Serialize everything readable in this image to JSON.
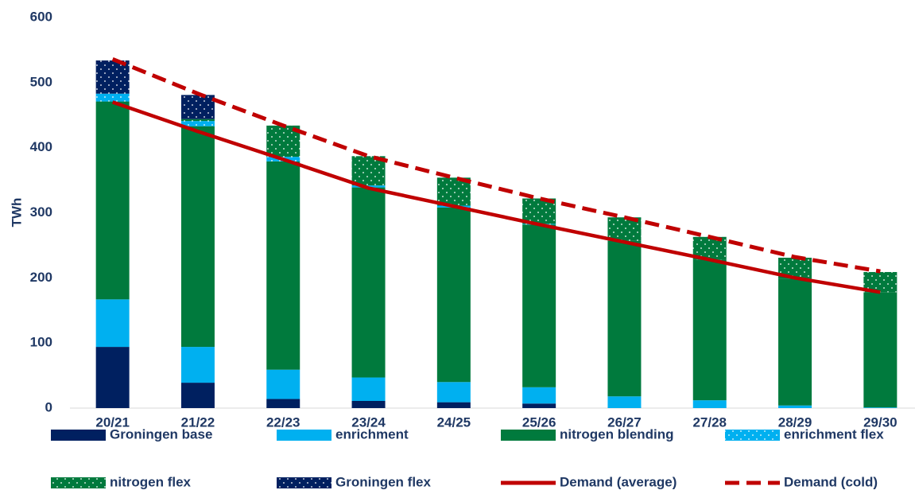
{
  "chart_data": {
    "type": "bar",
    "stacked": true,
    "y_label": "TWh",
    "categories": [
      "20/21",
      "21/22",
      "22/23",
      "23/24",
      "24/25",
      "25/26",
      "26/27",
      "27/28",
      "28/29",
      "29/30"
    ],
    "ylim": [
      0,
      600
    ],
    "yticks": [
      0,
      100,
      200,
      300,
      400,
      500,
      600
    ],
    "grid": false,
    "series": [
      {
        "name": "Groningen base",
        "type": "bar",
        "color": "#002060",
        "values": [
          94,
          39,
          14,
          11,
          9,
          7,
          0,
          0,
          0,
          0
        ]
      },
      {
        "name": "enrichment",
        "type": "bar",
        "color": "#00b0f0",
        "values": [
          73,
          55,
          45,
          36,
          31,
          25,
          18,
          12,
          4,
          1
        ]
      },
      {
        "name": "nitrogen blending",
        "type": "bar",
        "color": "#007a3d",
        "values": [
          304,
          339,
          320,
          292,
          268,
          250,
          239,
          216,
          195,
          177
        ]
      },
      {
        "name": "enrichment flex",
        "type": "bar",
        "color": "#00b0f0",
        "pattern": "dots",
        "values": [
          12,
          8,
          7,
          3,
          3,
          1,
          0,
          0,
          0,
          0
        ]
      },
      {
        "name": "nitrogen flex",
        "type": "bar",
        "color": "#007a3d",
        "pattern": "dots",
        "values": [
          0,
          3,
          48,
          45,
          43,
          39,
          36,
          35,
          32,
          31
        ]
      },
      {
        "name": "Groningen flex",
        "type": "bar",
        "color": "#002060",
        "pattern": "dots",
        "values": [
          51,
          37,
          0,
          0,
          0,
          0,
          0,
          0,
          0,
          0
        ]
      },
      {
        "name": "Demand (average)",
        "type": "line",
        "color": "#c00000",
        "values": [
          470,
          425,
          382,
          338,
          310,
          282,
          255,
          228,
          200,
          178
        ]
      },
      {
        "name": "Demand (cold)",
        "type": "line",
        "color": "#c00000",
        "dash": true,
        "values": [
          536,
          483,
          434,
          387,
          354,
          322,
          293,
          263,
          232,
          210
        ]
      }
    ]
  }
}
